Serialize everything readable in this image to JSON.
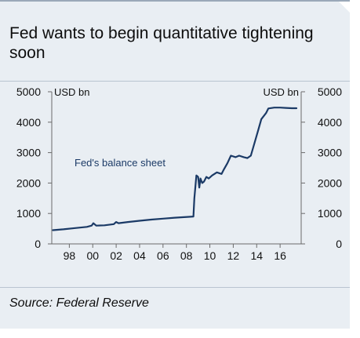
{
  "title": "Fed wants to begin quantitative tightening soon",
  "source": "Source: Federal Reserve",
  "colors": {
    "line": "#1b3a66",
    "background": "#e9eef3",
    "axis": "#6b6b6b"
  },
  "chart_data": {
    "type": "line",
    "title": "Fed wants to begin quantitative tightening soon",
    "ylabel_left": "USD bn",
    "ylabel_right": "USD bn",
    "ylim": [
      0,
      5000
    ],
    "xlim": [
      1996.5,
      2017.8
    ],
    "y_ticks": [
      0,
      1000,
      2000,
      3000,
      4000,
      5000
    ],
    "y_tick_labels": [
      "0",
      "1000",
      "2000",
      "3000",
      "4000",
      "5000"
    ],
    "x_ticks": [
      1998,
      2000,
      2002,
      2004,
      2006,
      2008,
      2010,
      2012,
      2014,
      2016
    ],
    "x_tick_labels": [
      "98",
      "00",
      "02",
      "04",
      "06",
      "08",
      "10",
      "12",
      "14",
      "16"
    ],
    "grid": false,
    "legend": "none",
    "annotations": [
      {
        "text": "Fed's balance sheet"
      }
    ],
    "series": [
      {
        "name": "Fed's balance sheet",
        "x": [
          1996.6,
          1997.5,
          1998.5,
          1999.5,
          1999.9,
          2000.05,
          2000.3,
          2001.0,
          2001.8,
          2002.0,
          2002.2,
          2003.0,
          2004.0,
          2005.0,
          2006.0,
          2007.0,
          2007.8,
          2008.6,
          2008.68,
          2008.85,
          2009.0,
          2009.1,
          2009.2,
          2009.35,
          2009.5,
          2009.7,
          2009.9,
          2010.2,
          2010.6,
          2011.0,
          2011.2,
          2011.5,
          2011.8,
          2012.2,
          2012.5,
          2012.9,
          2013.2,
          2013.5,
          2013.8,
          2014.1,
          2014.4,
          2014.8,
          2015.0,
          2015.5,
          2016.0,
          2016.5,
          2017.0,
          2017.4
        ],
        "values": [
          450,
          480,
          520,
          560,
          600,
          680,
          600,
          610,
          650,
          720,
          680,
          720,
          760,
          800,
          830,
          860,
          880,
          900,
          1500,
          2250,
          2200,
          1850,
          2150,
          2000,
          2050,
          2200,
          2150,
          2250,
          2350,
          2300,
          2450,
          2650,
          2900,
          2850,
          2900,
          2850,
          2820,
          2900,
          3300,
          3700,
          4100,
          4300,
          4450,
          4480,
          4480,
          4470,
          4460,
          4460
        ]
      }
    ]
  }
}
